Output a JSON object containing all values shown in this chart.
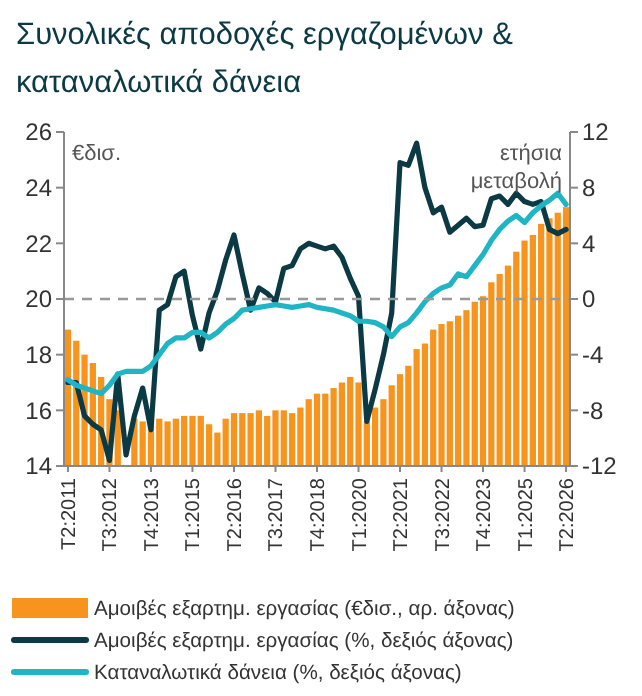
{
  "chart_data": {
    "type": "bar",
    "title": "Συνολικές αποδοχές εργαζομένων & καταναλωτικά δάνεια",
    "ylabel": "€δισ.",
    "y2label": "ετήσια μεταβολή",
    "categories": [
      "T2:2011",
      null,
      null,
      null,
      null,
      "T3:2012",
      null,
      null,
      null,
      null,
      "T4:2013",
      null,
      null,
      null,
      null,
      "T1:2015",
      null,
      null,
      null,
      null,
      "T2:2016",
      null,
      null,
      null,
      null,
      "T3:2017",
      null,
      null,
      null,
      null,
      "T4:2018",
      null,
      null,
      null,
      null,
      "T1:2020",
      null,
      null,
      null,
      null,
      "T2:2021",
      null,
      null,
      null,
      null,
      "T3:2022",
      null,
      null,
      null,
      null,
      "T4:2023",
      null,
      null,
      null,
      null,
      "T1:2025",
      null,
      null,
      null,
      null,
      "T2:2026"
    ],
    "series": [
      {
        "name": "Αμοιβές εξαρτημ. εργασίας (€δισ., αρ. άξονας)",
        "color": "#f7941d",
        "values": [
          18.9,
          18.5,
          18.0,
          17.7,
          17.2,
          16.4,
          16.0,
          null,
          15.7,
          15.6,
          15.6,
          15.7,
          15.6,
          15.7,
          15.8,
          15.8,
          15.8,
          15.5,
          15.2,
          15.7,
          15.9,
          15.9,
          15.9,
          16.0,
          15.8,
          16.0,
          16.0,
          15.9,
          16.1,
          16.4,
          16.6,
          16.6,
          16.8,
          17.0,
          17.2,
          17.0,
          15.6,
          16.1,
          16.4,
          16.9,
          17.3,
          17.6,
          18.2,
          18.4,
          18.9,
          19.1,
          19.2,
          19.4,
          19.6,
          19.9,
          20.1,
          20.6,
          20.9,
          21.2,
          21.7,
          22.1,
          22.3,
          22.7,
          22.9,
          23.1,
          23.3
        ]
      },
      {
        "name": "Αμοιβές εξαρτημ. εργασίας (%, δεξιός άξονας)",
        "type": "line",
        "axis": "y2",
        "color": "#0b3a45",
        "values": [
          -6,
          -6,
          -8.4,
          -9,
          -9.4,
          -11.6,
          -5.4,
          -11.2,
          -8.4,
          -6.4,
          -9.4,
          -0.8,
          -0.4,
          1.6,
          2,
          -1.2,
          -3.6,
          -1,
          0.6,
          2.8,
          4.6,
          1.8,
          -0.8,
          0.8,
          0.4,
          -0.2,
          2.2,
          2.4,
          3.6,
          4,
          3.8,
          3.6,
          3.8,
          3,
          1.5,
          0.2,
          -8.8,
          -6.5,
          -4,
          -1,
          9.8,
          9.6,
          11.2,
          8,
          6.2,
          6.6,
          4.8,
          5.3,
          5.8,
          5.2,
          5.3,
          7.2,
          7.4,
          6.8,
          7.6,
          7,
          6.8,
          7,
          5,
          4.7,
          5
        ]
      },
      {
        "name": "Καταναλωτικά δάνεια (%, δεξιός άξονας)",
        "type": "line",
        "axis": "y2",
        "color": "#1fb5c4",
        "values": [
          -5.8,
          -6.2,
          -6.4,
          -6.6,
          -6.8,
          -6.2,
          -5.4,
          -5.2,
          -5.2,
          -5.2,
          -4.8,
          -4,
          -3.2,
          -2.8,
          -2.8,
          -2.4,
          -2.4,
          -2.8,
          -2.4,
          -1.8,
          -1.4,
          -0.8,
          -0.7,
          -0.6,
          -0.5,
          -0.4,
          -0.5,
          -0.6,
          -0.5,
          -0.4,
          -0.6,
          -0.7,
          -0.8,
          -1,
          -1.2,
          -1.6,
          -1.6,
          -1.7,
          -2,
          -2.7,
          -2,
          -1.7,
          -1,
          -0.2,
          0.4,
          0.8,
          1,
          1.8,
          1.6,
          2.4,
          3.2,
          4.2,
          5,
          5.6,
          6,
          5.5,
          6.2,
          6.7,
          7.1,
          7.6,
          6.8
        ]
      }
    ],
    "ylim": [
      14,
      26
    ],
    "yticks": [
      14,
      16,
      18,
      20,
      22,
      24,
      26
    ],
    "y2lim": [
      -12,
      12
    ],
    "y2ticks": [
      -12,
      -8,
      -4,
      0,
      4,
      8,
      12
    ],
    "ref_lines": [
      {
        "axis": "y",
        "value": 20,
        "color": "#999999",
        "line_style": "dashed"
      }
    ],
    "legend": "bottom",
    "grid": false
  }
}
